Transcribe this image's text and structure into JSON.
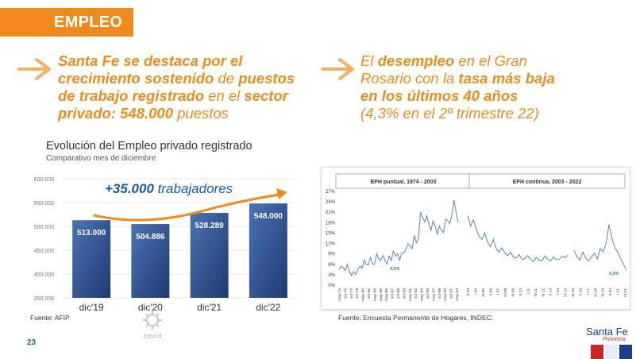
{
  "header": {
    "title": "EMPLEO"
  },
  "left_headline": {
    "line1_b": "Santa Fe se destaca por el",
    "line2_b": "crecimiento sostenido",
    "line2_n": " de ",
    "line2_b2": "puestos",
    "line3_b": "de trabajo registrado",
    "line3_n": " en el ",
    "line3_b2": "sector",
    "line4_b": "privado: 548.000",
    "line4_n": " puestos"
  },
  "right_headline": {
    "line1_n": "El ",
    "line1_b": "desempleo",
    "line1_n2": " en el Gran",
    "line2_n": "Rosario con la ",
    "line2_b": "tasa más baja",
    "line3_b": "en los últimos 40 años",
    "line4_n": "(4,3%  en el 2º trimestre 22)"
  },
  "colors": {
    "accent": "#f08a1c",
    "bar": "#2f4f8f",
    "line": "#5b84b1"
  },
  "chart_data": [
    {
      "type": "bar",
      "title": "Evolución del Empleo privado registrado",
      "subtitle": "Comparativo mes de diciembre",
      "categories": [
        "dic'19",
        "dic'20",
        "dic'21",
        "dic'22"
      ],
      "values": [
        513000,
        504886,
        528289,
        548000
      ],
      "value_labels": [
        "513.000",
        "504.886",
        "528.289",
        "548.000"
      ],
      "ylim": [
        350000,
        600000
      ],
      "yticks": [
        350000,
        400000,
        450000,
        500000,
        550000,
        600000
      ],
      "ytick_labels": [
        "350.000",
        "400.000",
        "450.000",
        "500.000",
        "550.000",
        "600.000"
      ],
      "annotation_b": "+35.000",
      "annotation_n": " trabajadores",
      "source": "Fuente: AFIP",
      "grid": true
    },
    {
      "type": "line",
      "panel_titles": [
        "EPH puntual, 1974 - 2003",
        "EPH continua, 2003 - 2022"
      ],
      "ylim": [
        0,
        27
      ],
      "yticks": [
        0,
        3,
        6,
        9,
        12,
        15,
        18,
        21,
        24,
        27
      ],
      "ytick_labels": [
        "0%",
        "3%",
        "6%",
        "9%",
        "12%",
        "15%",
        "18%",
        "21%",
        "24%",
        "27%"
      ],
      "annotations": [
        "4,5%",
        "4,3%"
      ],
      "series_puntual": [
        4.5,
        5.5,
        5.0,
        4.2,
        6.0,
        3.8,
        2.8,
        3.9,
        3.1,
        4.5,
        5.5,
        4.8,
        7.2,
        6.0,
        5.8,
        8.0,
        6.2,
        5.9,
        9.0,
        7.6,
        7.1,
        8.6,
        7.1,
        6.1,
        8.3,
        7.1,
        9.8,
        8.3,
        9.1,
        7.2,
        9.3,
        9.2,
        10.3,
        12.0,
        11.2,
        10.5,
        14.3,
        12.2,
        13.4,
        21.0,
        19.5,
        18.2,
        20.0,
        17.5,
        15.8,
        18.5,
        17.0,
        14.6,
        17.0,
        15.8,
        15.1,
        19.0,
        18.6,
        17.8,
        20.3,
        24.5,
        21.0,
        18.0
      ],
      "series_continua_1": [
        20.0,
        17.0,
        18.8,
        16.3,
        14.0,
        13.2,
        15.0,
        12.3,
        11.0,
        13.2,
        10.5,
        9.5,
        10.8,
        9.3,
        8.5,
        9.5,
        8.0,
        7.8,
        8.8,
        7.3,
        7.7,
        8.5,
        7.5,
        6.8,
        8.0,
        7.2,
        7.0,
        8.4,
        7.5,
        6.9,
        8.1,
        7.3,
        7.4,
        8.3,
        7.9,
        8.6
      ],
      "series_continua_2": [
        10.0,
        8.2,
        7.2,
        9.5,
        7.8,
        6.9,
        8.1,
        9.2,
        7.6,
        10.5,
        9.6,
        12.0,
        17.5,
        13.5,
        10.8,
        9.5,
        7.6,
        6.0,
        4.3
      ],
      "x_tick_labels_puntual": [
        "may-74",
        "oct-75",
        "oct-77",
        "oct-78",
        "may-80",
        "oct-81",
        "may-83",
        "may-85",
        "may-86",
        "oct-87",
        "oct-88",
        "oct-89",
        "may-91",
        "oct-92",
        "may-94",
        "oct-95",
        "may-97",
        "oct-98",
        "may-00",
        "oct-01",
        "may-03"
      ],
      "x_tick_labels_continua": [
        "II.03",
        "I.04",
        "III.05",
        "II.06",
        "I.07",
        "IV.08",
        "III.09",
        "II.10",
        "I.11",
        "IV.11",
        "III.12",
        "II.13",
        "I.14",
        "IV.14",
        "III.15",
        "II.16",
        "I.17",
        "IV.18",
        "III.19",
        "II.20",
        "I.21",
        "IV.21"
      ],
      "source": "Fuente: Encuesta Permanente de Hogares, INDEC."
    }
  ],
  "footer": {
    "page_number": "23",
    "brand": "Santa Fe",
    "brand_sub": "Provincia",
    "covid_label": "covid"
  }
}
